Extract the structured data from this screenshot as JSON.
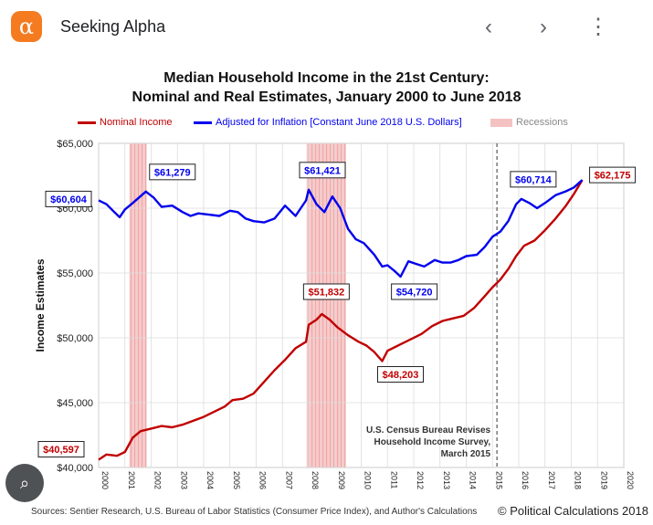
{
  "header": {
    "logo_glyph": "α",
    "site_name": "Seeking Alpha",
    "back_glyph": "‹",
    "forward_glyph": "›",
    "more_glyph": "⋮",
    "accent_color": "#f47b20"
  },
  "chart_title_line1": "Median Household Income in the 21st Century:",
  "chart_title_line2": "Nominal and Real Estimates, January 2000 to June 2018",
  "legend": {
    "nominal": "Nominal Income",
    "real": "Adjusted for Inflation [Constant June 2018 U.S. Dollars]",
    "recessions": "Recessions"
  },
  "source_text": "Sources: Sentier Research, U.S. Bureau of Labor Statistics (Consumer  Price Index), and Author's Calculations",
  "copyright_text": "© Political Calculations 2018",
  "chart_data": {
    "type": "line",
    "title": "Median Household Income in the 21st Century: Nominal and Real Estimates, January 2000 to June 2018",
    "ylabel": "Income Estimates",
    "xlabel": "",
    "xlim": [
      2000,
      2020
    ],
    "ylim": [
      40000,
      65000
    ],
    "x_ticks": [
      "2000",
      "2001",
      "2002",
      "2003",
      "2004",
      "2005",
      "2006",
      "2007",
      "2008",
      "2009",
      "2010",
      "2011",
      "2012",
      "2013",
      "2014",
      "2015",
      "2016",
      "2017",
      "2018",
      "2019",
      "2020"
    ],
    "y_ticks": [
      "$40,000",
      "$45,000",
      "$50,000",
      "$55,000",
      "$60,000",
      "$65,000"
    ],
    "grid": true,
    "legend_position": "top",
    "colors": {
      "nominal": "#c00000",
      "real": "#0000ee",
      "recession": "#f5c2c2",
      "revision_line": "#555555"
    },
    "recessions": [
      [
        2001.17,
        2001.83
      ],
      [
        2007.92,
        2009.42
      ]
    ],
    "revision_marker": {
      "x": 2015.17,
      "label": [
        "U.S. Census Bureau Revises",
        "Household Income Survey,",
        "March 2015"
      ]
    },
    "series": [
      {
        "name": "Nominal Income",
        "color": "#c00000",
        "points": [
          [
            2000.0,
            40597
          ],
          [
            2000.3,
            41000
          ],
          [
            2000.7,
            40900
          ],
          [
            2001.0,
            41200
          ],
          [
            2001.3,
            42300
          ],
          [
            2001.6,
            42800
          ],
          [
            2002.0,
            43000
          ],
          [
            2002.4,
            43200
          ],
          [
            2002.8,
            43100
          ],
          [
            2003.2,
            43300
          ],
          [
            2003.6,
            43600
          ],
          [
            2004.0,
            43900
          ],
          [
            2004.4,
            44300
          ],
          [
            2004.8,
            44700
          ],
          [
            2005.1,
            45200
          ],
          [
            2005.5,
            45300
          ],
          [
            2005.9,
            45700
          ],
          [
            2006.3,
            46600
          ],
          [
            2006.7,
            47500
          ],
          [
            2007.1,
            48300
          ],
          [
            2007.5,
            49200
          ],
          [
            2007.9,
            49700
          ],
          [
            2008.0,
            51000
          ],
          [
            2008.3,
            51400
          ],
          [
            2008.5,
            51832
          ],
          [
            2008.8,
            51400
          ],
          [
            2009.1,
            50800
          ],
          [
            2009.5,
            50200
          ],
          [
            2009.9,
            49700
          ],
          [
            2010.2,
            49400
          ],
          [
            2010.5,
            48900
          ],
          [
            2010.8,
            48203
          ],
          [
            2011.0,
            49000
          ],
          [
            2011.5,
            49500
          ],
          [
            2011.9,
            49900
          ],
          [
            2012.3,
            50300
          ],
          [
            2012.7,
            50900
          ],
          [
            2013.1,
            51300
          ],
          [
            2013.5,
            51500
          ],
          [
            2013.9,
            51700
          ],
          [
            2014.3,
            52300
          ],
          [
            2014.7,
            53200
          ],
          [
            2015.0,
            53900
          ],
          [
            2015.3,
            54500
          ],
          [
            2015.6,
            55300
          ],
          [
            2015.9,
            56300
          ],
          [
            2016.2,
            57100
          ],
          [
            2016.6,
            57500
          ],
          [
            2017.0,
            58300
          ],
          [
            2017.4,
            59200
          ],
          [
            2017.8,
            60200
          ],
          [
            2018.1,
            61100
          ],
          [
            2018.42,
            62175
          ]
        ]
      },
      {
        "name": "Adjusted for Inflation [Constant June 2018 U.S. Dollars]",
        "color": "#0000ee",
        "points": [
          [
            2000.0,
            60604
          ],
          [
            2000.3,
            60300
          ],
          [
            2000.6,
            59700
          ],
          [
            2000.8,
            59300
          ],
          [
            2001.0,
            59900
          ],
          [
            2001.3,
            60400
          ],
          [
            2001.8,
            61279
          ],
          [
            2002.1,
            60800
          ],
          [
            2002.4,
            60100
          ],
          [
            2002.8,
            60200
          ],
          [
            2003.2,
            59700
          ],
          [
            2003.5,
            59400
          ],
          [
            2003.8,
            59600
          ],
          [
            2004.2,
            59500
          ],
          [
            2004.6,
            59400
          ],
          [
            2005.0,
            59800
          ],
          [
            2005.3,
            59700
          ],
          [
            2005.6,
            59200
          ],
          [
            2005.9,
            59000
          ],
          [
            2006.3,
            58900
          ],
          [
            2006.7,
            59200
          ],
          [
            2007.1,
            60200
          ],
          [
            2007.5,
            59400
          ],
          [
            2007.9,
            60600
          ],
          [
            2008.0,
            61421
          ],
          [
            2008.3,
            60300
          ],
          [
            2008.6,
            59700
          ],
          [
            2008.9,
            60900
          ],
          [
            2009.2,
            60000
          ],
          [
            2009.5,
            58400
          ],
          [
            2009.8,
            57600
          ],
          [
            2010.1,
            57300
          ],
          [
            2010.5,
            56400
          ],
          [
            2010.8,
            55500
          ],
          [
            2011.0,
            55600
          ],
          [
            2011.3,
            55100
          ],
          [
            2011.5,
            54720
          ],
          [
            2011.8,
            55900
          ],
          [
            2012.1,
            55700
          ],
          [
            2012.4,
            55500
          ],
          [
            2012.8,
            56000
          ],
          [
            2013.1,
            55800
          ],
          [
            2013.4,
            55800
          ],
          [
            2013.7,
            56000
          ],
          [
            2014.0,
            56300
          ],
          [
            2014.4,
            56400
          ],
          [
            2014.7,
            57000
          ],
          [
            2015.0,
            57800
          ],
          [
            2015.3,
            58200
          ],
          [
            2015.6,
            59000
          ],
          [
            2015.9,
            60300
          ],
          [
            2016.1,
            60714
          ],
          [
            2016.4,
            60400
          ],
          [
            2016.7,
            60000
          ],
          [
            2017.0,
            60400
          ],
          [
            2017.4,
            61000
          ],
          [
            2017.8,
            61300
          ],
          [
            2018.1,
            61600
          ],
          [
            2018.42,
            62175
          ]
        ]
      }
    ],
    "annotations": [
      {
        "text": "$40,597",
        "series": "nominal",
        "x": 2000.0,
        "y": 40597
      },
      {
        "text": "$51,832",
        "series": "nominal",
        "x": 2008.5,
        "y": 51832
      },
      {
        "text": "$48,203",
        "series": "nominal",
        "x": 2010.8,
        "y": 48203
      },
      {
        "text": "$62,175",
        "series": "nominal",
        "x": 2018.42,
        "y": 62175
      },
      {
        "text": "$60,604",
        "series": "real",
        "x": 2000.0,
        "y": 60604
      },
      {
        "text": "$61,279",
        "series": "real",
        "x": 2001.8,
        "y": 61279
      },
      {
        "text": "$61,421",
        "series": "real",
        "x": 2008.0,
        "y": 61421
      },
      {
        "text": "$54,720",
        "series": "real",
        "x": 2011.5,
        "y": 54720
      },
      {
        "text": "$60,714",
        "series": "real",
        "x": 2016.1,
        "y": 60714
      }
    ]
  }
}
